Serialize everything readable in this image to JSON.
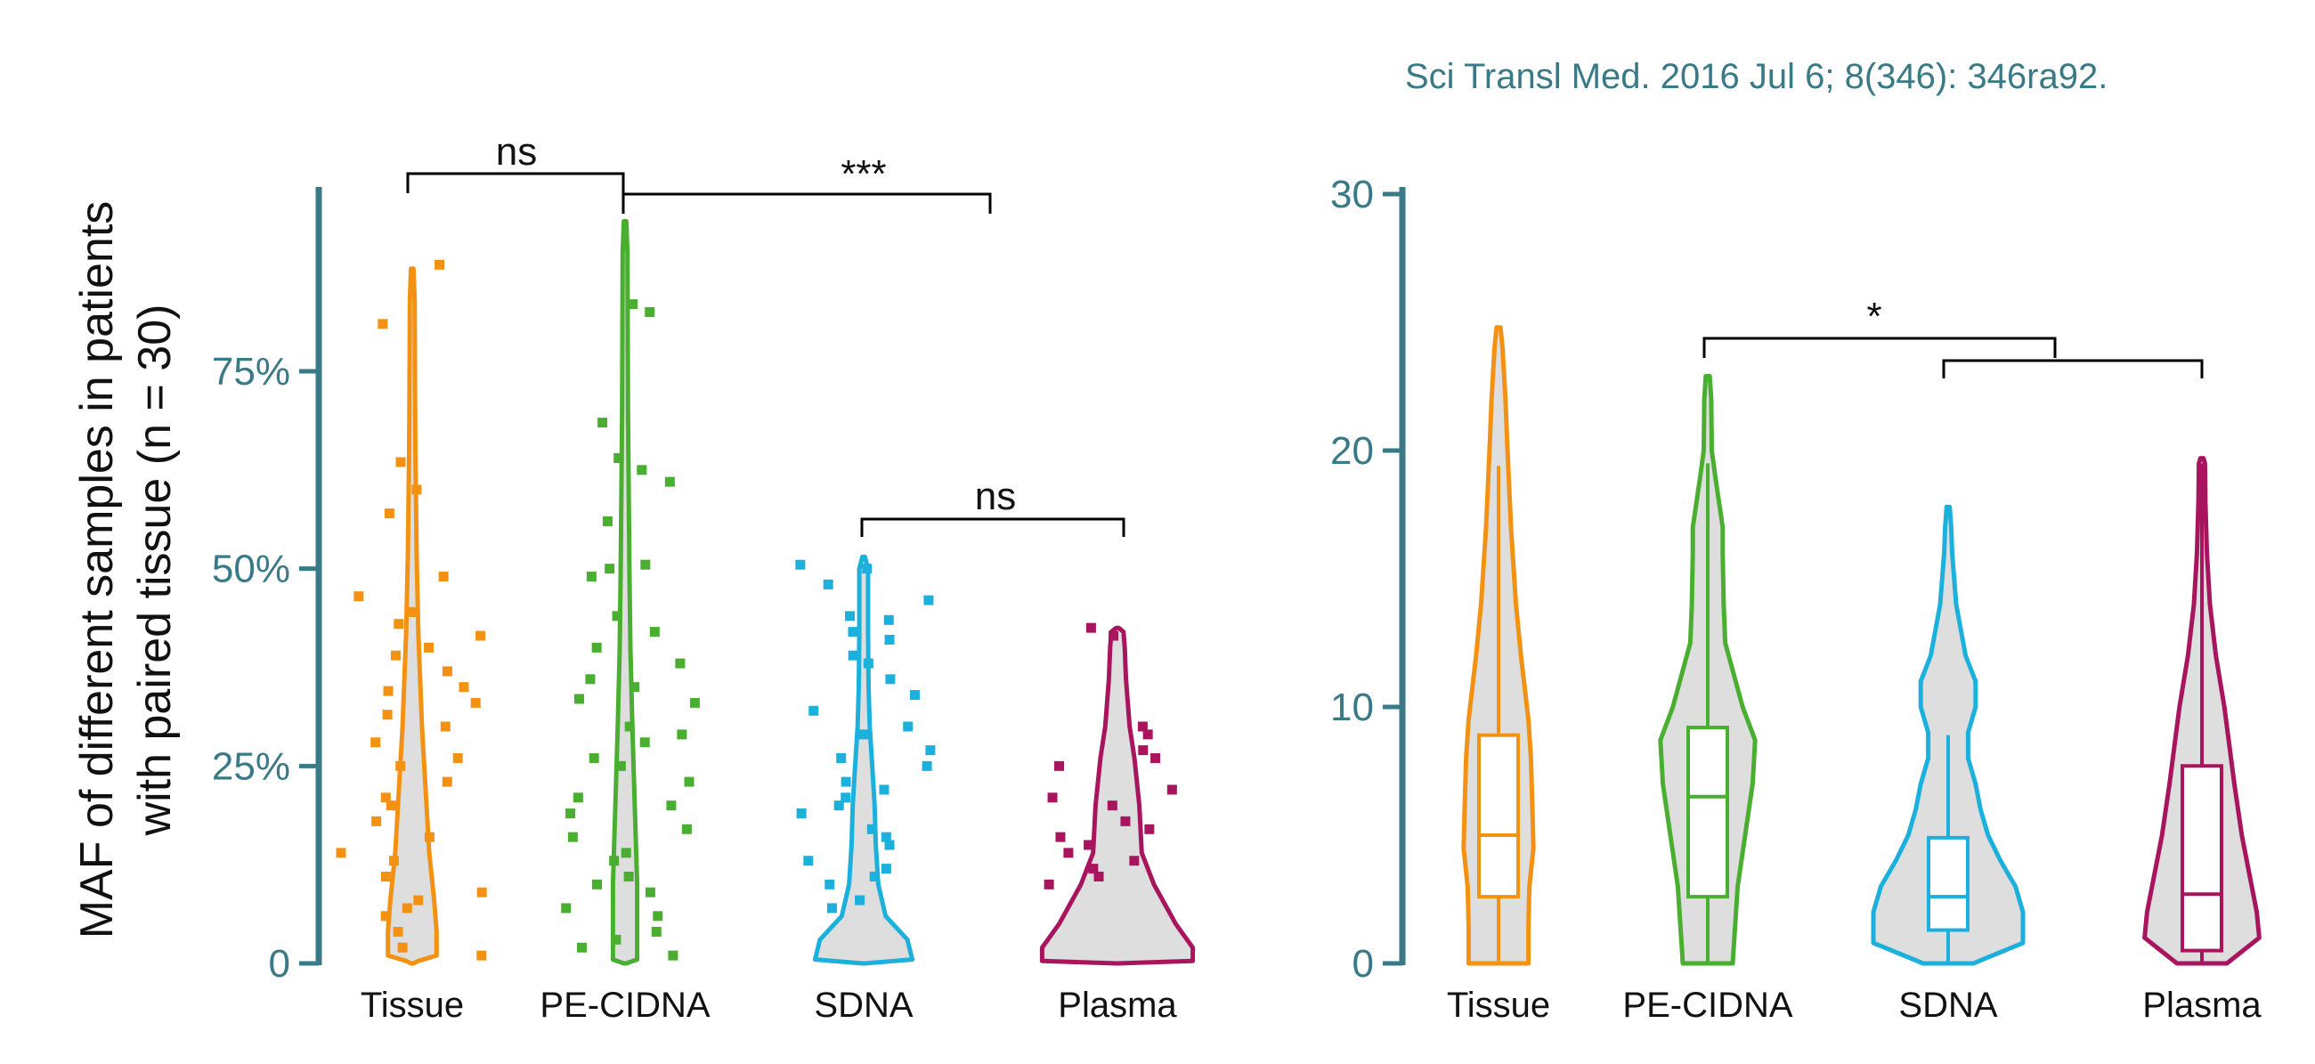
{
  "citation": "Sci Transl Med. 2016 Jul 6; 8(346): 346ra92.",
  "colors": {
    "axis": "#3a7a87",
    "tick_text": "#3a7a87",
    "citation": "#3a7a87",
    "violin_fill": "#dedede",
    "bracket": "#000000",
    "Tissue": "#f39212",
    "PE-CIDNA": "#4aae30",
    "SDNA": "#1cb0dc",
    "Plasma": "#a8155e"
  },
  "chart_data": [
    {
      "type": "violin",
      "ylabel": "MAF of different samples in patients with paired tissue (n = 30)",
      "ylabel_lines": [
        "MAF of different samples in patients",
        "with paired tissue (n = 30)"
      ],
      "ylim": [
        0,
        0.98
      ],
      "yticks": [
        0,
        0.25,
        0.5,
        0.75
      ],
      "ytick_labels": [
        "0",
        "25%",
        "50%",
        "75%"
      ],
      "categories": [
        "Tissue",
        "PE-CIDNA",
        "SDNA",
        "Plasma"
      ],
      "violin_profiles": [
        {
          "name": "Tissue",
          "profile": [
            [
              0,
              0.005
            ],
            [
              0.003,
              0.025
            ],
            [
              0.01,
              0.1
            ],
            [
              0.03,
              0.1
            ],
            [
              0.04,
              0.1
            ],
            [
              0.08,
              0.09
            ],
            [
              0.14,
              0.07
            ],
            [
              0.22,
              0.055
            ],
            [
              0.3,
              0.04
            ],
            [
              0.42,
              0.025
            ],
            [
              0.52,
              0.018
            ],
            [
              0.65,
              0.013
            ],
            [
              0.75,
              0.011
            ],
            [
              0.84,
              0.01
            ],
            [
              0.88,
              0.005
            ]
          ]
        },
        {
          "name": "PE-CIDNA",
          "profile": [
            [
              0,
              0.005
            ],
            [
              0.005,
              0.05
            ],
            [
              0.02,
              0.05
            ],
            [
              0.1,
              0.05
            ],
            [
              0.2,
              0.04
            ],
            [
              0.3,
              0.03
            ],
            [
              0.4,
              0.022
            ],
            [
              0.5,
              0.018
            ],
            [
              0.6,
              0.015
            ],
            [
              0.7,
              0.012
            ],
            [
              0.8,
              0.011
            ],
            [
              0.9,
              0.01
            ],
            [
              0.94,
              0.005
            ]
          ]
        },
        {
          "name": "SDNA",
          "profile": [
            [
              0,
              0.005
            ],
            [
              0.005,
              0.2
            ],
            [
              0.03,
              0.18
            ],
            [
              0.06,
              0.09
            ],
            [
              0.1,
              0.06
            ],
            [
              0.15,
              0.05
            ],
            [
              0.2,
              0.045
            ],
            [
              0.25,
              0.035
            ],
            [
              0.3,
              0.025
            ],
            [
              0.35,
              0.02
            ],
            [
              0.42,
              0.018
            ],
            [
              0.5,
              0.018
            ],
            [
              0.515,
              0.005
            ]
          ]
        },
        {
          "name": "Plasma",
          "profile": [
            [
              0,
              0.005
            ],
            [
              0.003,
              0.31
            ],
            [
              0.02,
              0.31
            ],
            [
              0.05,
              0.24
            ],
            [
              0.1,
              0.15
            ],
            [
              0.14,
              0.1
            ],
            [
              0.2,
              0.09
            ],
            [
              0.26,
              0.07
            ],
            [
              0.3,
              0.05
            ],
            [
              0.36,
              0.035
            ],
            [
              0.4,
              0.03
            ],
            [
              0.42,
              0.025
            ],
            [
              0.425,
              0.005
            ]
          ]
        }
      ],
      "points": [
        {
          "name": "Tissue",
          "values": [
            0.885,
            0.81,
            0.635,
            0.6,
            0.57,
            0.49,
            0.465,
            0.445,
            0.43,
            0.415,
            0.4,
            0.39,
            0.37,
            0.35,
            0.345,
            0.33,
            0.315,
            0.3,
            0.28,
            0.26,
            0.25,
            0.23,
            0.21,
            0.2,
            0.18,
            0.16,
            0.14,
            0.13,
            0.11,
            0.09,
            0.08,
            0.07,
            0.06,
            0.04,
            0.02,
            0.01
          ]
        },
        {
          "name": "PE-CIDNA",
          "values": [
            0.835,
            0.825,
            0.685,
            0.64,
            0.625,
            0.61,
            0.56,
            0.505,
            0.5,
            0.49,
            0.44,
            0.42,
            0.4,
            0.38,
            0.36,
            0.35,
            0.335,
            0.33,
            0.3,
            0.29,
            0.28,
            0.26,
            0.25,
            0.23,
            0.21,
            0.2,
            0.19,
            0.17,
            0.16,
            0.14,
            0.13,
            0.11,
            0.1,
            0.09,
            0.07,
            0.06,
            0.04,
            0.03,
            0.02,
            0.01
          ]
        },
        {
          "name": "SDNA",
          "values": [
            0.505,
            0.5,
            0.48,
            0.46,
            0.44,
            0.435,
            0.42,
            0.41,
            0.39,
            0.38,
            0.36,
            0.34,
            0.32,
            0.3,
            0.29,
            0.27,
            0.26,
            0.25,
            0.23,
            0.22,
            0.21,
            0.2,
            0.19,
            0.17,
            0.16,
            0.15,
            0.13,
            0.12,
            0.11,
            0.1,
            0.08,
            0.07
          ]
        },
        {
          "name": "Plasma",
          "values": [
            0.425,
            0.415,
            0.3,
            0.29,
            0.27,
            0.26,
            0.25,
            0.22,
            0.21,
            0.2,
            0.18,
            0.17,
            0.16,
            0.15,
            0.14,
            0.13,
            0.12,
            0.11,
            0.1
          ]
        }
      ],
      "significance": [
        {
          "from": "Tissue",
          "to": "PE-CIDNA",
          "label": "ns"
        },
        {
          "from": "PE-CIDNA",
          "to": "SDNA",
          "label": "***"
        },
        {
          "from": "SDNA",
          "to": "Plasma",
          "label": "ns"
        }
      ]
    },
    {
      "type": "violin",
      "ylabel": "",
      "ylim": [
        0,
        30
      ],
      "yticks": [
        0,
        10,
        20,
        30
      ],
      "ytick_labels": [
        "0",
        "10",
        "20",
        "30"
      ],
      "categories": [
        "Tissue",
        "PE-CIDNA",
        "SDNA",
        "Plasma"
      ],
      "violin_profiles": [
        {
          "name": "Tissue",
          "profile": [
            [
              0,
              0.6
            ],
            [
              1.5,
              0.6
            ],
            [
              3,
              0.62
            ],
            [
              4.5,
              0.7
            ],
            [
              6,
              0.68
            ],
            [
              8,
              0.65
            ],
            [
              9.5,
              0.6
            ],
            [
              12,
              0.45
            ],
            [
              14,
              0.35
            ],
            [
              17,
              0.25
            ],
            [
              20,
              0.18
            ],
            [
              22,
              0.14
            ],
            [
              24,
              0.08
            ],
            [
              24.8,
              0.04
            ]
          ]
        },
        {
          "name": "PE-CIDNA",
          "profile": [
            [
              0,
              0.5
            ],
            [
              1.5,
              0.55
            ],
            [
              3,
              0.6
            ],
            [
              5,
              0.75
            ],
            [
              7,
              0.9
            ],
            [
              8.7,
              0.95
            ],
            [
              10,
              0.7
            ],
            [
              12.5,
              0.35
            ],
            [
              14,
              0.32
            ],
            [
              16,
              0.3
            ],
            [
              17,
              0.3
            ],
            [
              19,
              0.15
            ],
            [
              20,
              0.08
            ],
            [
              22,
              0.07
            ],
            [
              22.9,
              0.04
            ]
          ]
        },
        {
          "name": "SDNA",
          "profile": [
            [
              0,
              0.5
            ],
            [
              0.8,
              1.5
            ],
            [
              2,
              1.5
            ],
            [
              3,
              1.35
            ],
            [
              4,
              1.05
            ],
            [
              5,
              0.8
            ],
            [
              6,
              0.65
            ],
            [
              7,
              0.55
            ],
            [
              8,
              0.4
            ],
            [
              9,
              0.4
            ],
            [
              10,
              0.55
            ],
            [
              11,
              0.55
            ],
            [
              12,
              0.35
            ],
            [
              14,
              0.16
            ],
            [
              16,
              0.08
            ],
            [
              17,
              0.06
            ],
            [
              17.8,
              0.03
            ]
          ]
        },
        {
          "name": "Plasma",
          "profile": [
            [
              0,
              0.5
            ],
            [
              1,
              1.15
            ],
            [
              2,
              1.1
            ],
            [
              3,
              1.0
            ],
            [
              5,
              0.8
            ],
            [
              7,
              0.65
            ],
            [
              8.5,
              0.55
            ],
            [
              10,
              0.45
            ],
            [
              12,
              0.28
            ],
            [
              14,
              0.16
            ],
            [
              16,
              0.1
            ],
            [
              18,
              0.07
            ],
            [
              19.5,
              0.06
            ],
            [
              19.7,
              0.03
            ]
          ]
        }
      ],
      "boxplots": [
        {
          "name": "Tissue",
          "q1": 2.6,
          "median": 5.0,
          "q3": 8.9,
          "whisker_low": 0,
          "whisker_high": 19.4
        },
        {
          "name": "PE-CIDNA",
          "q1": 2.6,
          "median": 6.5,
          "q3": 9.2,
          "whisker_low": 0,
          "whisker_high": 19.5
        },
        {
          "name": "SDNA",
          "q1": 1.3,
          "median": 2.6,
          "q3": 4.9,
          "whisker_low": 0,
          "whisker_high": 8.9
        },
        {
          "name": "Plasma",
          "q1": 0.5,
          "median": 2.7,
          "q3": 7.7,
          "whisker_low": 0,
          "whisker_high": 19.5
        }
      ],
      "significance": [
        {
          "from": "PE-CIDNA",
          "to": "SDNA",
          "label": "*"
        },
        {
          "from": "SDNA",
          "to": "Plasma",
          "label": ""
        }
      ]
    }
  ]
}
